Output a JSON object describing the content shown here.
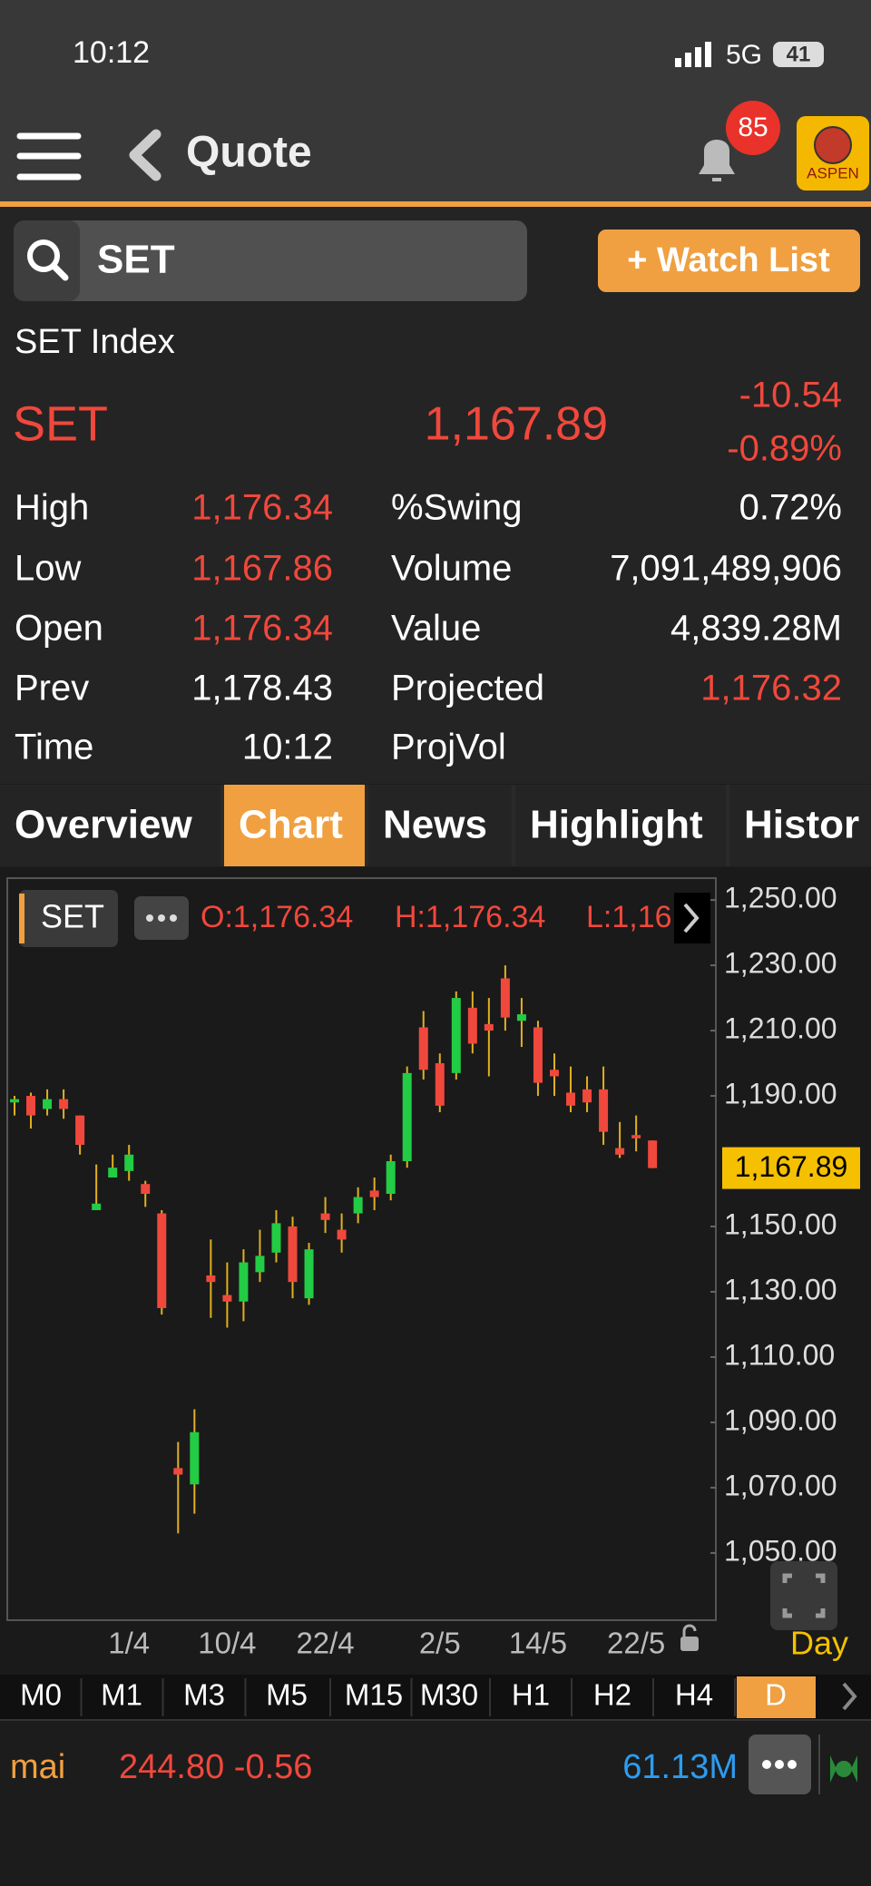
{
  "status_bar": {
    "time": "10:12",
    "network": "5G",
    "battery": "41"
  },
  "nav": {
    "title": "Quote",
    "badge": "85",
    "logo": "ASPEN"
  },
  "search": {
    "query": "SET",
    "button": "+ Watch List"
  },
  "quote": {
    "name": "SET Index",
    "symbol": "SET",
    "last": "1,167.89",
    "change": "-10.54",
    "change_pct": "-0.89%",
    "rows": [
      {
        "label": "High",
        "value": "1,176.34",
        "value_color": "#f0483c",
        "label2": "%Swing",
        "value2": "0.72%",
        "value2_color": "#ffffff"
      },
      {
        "label": "Low",
        "value": "1,167.86",
        "value_color": "#f0483c",
        "label2": "Volume",
        "value2": "7,091,489,906",
        "value2_color": "#ffffff"
      },
      {
        "label": "Open",
        "value": "1,176.34",
        "value_color": "#f0483c",
        "label2": "Value",
        "value2": "4,839.28M",
        "value2_color": "#ffffff"
      },
      {
        "label": "Prev",
        "value": "1,178.43",
        "value_color": "#ffffff",
        "label2": "Projected",
        "value2": "1,176.32",
        "value2_color": "#f0483c"
      },
      {
        "label": "Time",
        "value": "10:12",
        "value_color": "#ffffff",
        "label2": "ProjVol"
      }
    ]
  },
  "tabs": [
    "Overview",
    "Chart",
    "News",
    "Highlight",
    "Histor"
  ],
  "active_tab": 1,
  "chart": {
    "type": "candlestick",
    "symbol": "SET",
    "summary": [
      "O:1,176.34",
      "H:1,176.34",
      "L:1,16"
    ],
    "categories": [
      null,
      null,
      null,
      null,
      null,
      null,
      null,
      "1/4",
      null,
      null,
      null,
      null,
      null,
      "10/4",
      null,
      null,
      null,
      null,
      null,
      "22/4",
      null,
      null,
      null,
      null,
      null,
      null,
      "2/5",
      null,
      null,
      null,
      null,
      null,
      "14/5",
      null,
      null,
      null,
      null,
      null,
      "22/5",
      null
    ],
    "open": [
      1188,
      1190,
      1186,
      1189,
      1184,
      1155,
      1165,
      1167,
      1163,
      1154,
      1076,
      1071,
      1135,
      1129,
      1127,
      1136,
      1142,
      1150,
      1128,
      1154,
      1149,
      1154,
      1161,
      1160,
      1170,
      1211,
      1200,
      1197,
      1217,
      1212,
      1226,
      1213,
      1211,
      1198,
      1191,
      1192,
      1192,
      1174,
      1178,
      1176.34
    ],
    "high": [
      1190,
      1191,
      1192,
      1192,
      1184,
      1169,
      1172,
      1175,
      1164,
      1155,
      1084,
      1094,
      1146,
      1139,
      1143,
      1149,
      1155,
      1153,
      1145,
      1159,
      1154,
      1162,
      1165,
      1172,
      1199,
      1216,
      1203,
      1222,
      1222,
      1220,
      1230,
      1220,
      1213,
      1203,
      1199,
      1196,
      1199,
      1182,
      1184,
      1176.34
    ],
    "low": [
      1184,
      1180,
      1184,
      1183,
      1172,
      1155,
      1165,
      1164,
      1156,
      1123,
      1056,
      1062,
      1122,
      1119,
      1121,
      1133,
      1139,
      1128,
      1126,
      1148,
      1142,
      1151,
      1155,
      1158,
      1168,
      1195,
      1185,
      1195,
      1203,
      1196,
      1210,
      1205,
      1190,
      1190,
      1185,
      1185,
      1175,
      1171,
      1173,
      1167.86
    ],
    "close": [
      1189,
      1184,
      1189,
      1186,
      1175,
      1157,
      1168,
      1172,
      1160,
      1125,
      1074,
      1087,
      1133,
      1127,
      1139,
      1141,
      1151,
      1133,
      1143,
      1152,
      1146,
      1159,
      1159,
      1170,
      1197,
      1198,
      1187,
      1220,
      1206,
      1210,
      1214,
      1215,
      1194,
      1196,
      1187,
      1188,
      1179,
      1172,
      1177,
      1167.89
    ],
    "up_color": "#22cc44",
    "down_color": "#f0483c",
    "ylim": [
      1029.4,
      1256.7
    ],
    "yticks": [
      {
        "value": 1250,
        "label": "1,250.00"
      },
      {
        "value": 1230,
        "label": "1,230.00"
      },
      {
        "value": 1210,
        "label": "1,210.00"
      },
      {
        "value": 1190,
        "label": "1,190.00"
      },
      {
        "value": 1150,
        "label": "1,150.00"
      },
      {
        "value": 1130,
        "label": "1,130.00"
      },
      {
        "value": 1110,
        "label": "1,110.00"
      },
      {
        "value": 1090,
        "label": "1,090.00"
      },
      {
        "value": 1070,
        "label": "1,070.00"
      },
      {
        "value": 1050,
        "label": "1,050.00"
      }
    ],
    "current": {
      "value": 1167.89,
      "label": "1,167.89"
    },
    "period": "Day"
  },
  "timeframes": [
    "M0",
    "M1",
    "M3",
    "M5",
    "M15",
    "M30",
    "H1",
    "H2",
    "H4",
    "D"
  ],
  "active_timeframe": 9,
  "ticker": {
    "market": "mai",
    "price": "244.80 -0.56",
    "value": "61.13M"
  }
}
